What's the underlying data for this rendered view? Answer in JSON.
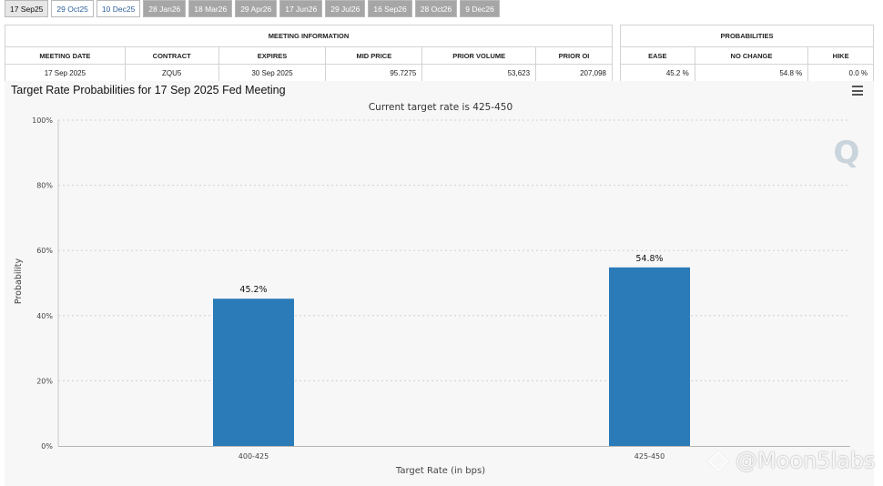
{
  "tabs": [
    {
      "label": "17 Sep25",
      "state": "active"
    },
    {
      "label": "29 Oct25",
      "state": "light"
    },
    {
      "label": "10 Dec25",
      "state": "light"
    },
    {
      "label": "28 Jan26",
      "state": "dark"
    },
    {
      "label": "18 Mar26",
      "state": "dark"
    },
    {
      "label": "29 Apr26",
      "state": "dark"
    },
    {
      "label": "17 Jun26",
      "state": "dark"
    },
    {
      "label": "29 Jul26",
      "state": "dark"
    },
    {
      "label": "16 Sep26",
      "state": "dark"
    },
    {
      "label": "28 Oct26",
      "state": "dark"
    },
    {
      "label": "9 Dec26",
      "state": "dark"
    }
  ],
  "meeting_info": {
    "title": "MEETING INFORMATION",
    "headers": [
      "MEETING DATE",
      "CONTRACT",
      "EXPIRES",
      "MID PRICE",
      "PRIOR VOLUME",
      "PRIOR OI"
    ],
    "row": [
      "17 Sep 2025",
      "ZQU5",
      "30 Sep 2025",
      "95.7275",
      "53,623",
      "207,098"
    ]
  },
  "probabilities": {
    "title": "PROBABILITIES",
    "headers": [
      "EASE",
      "NO CHANGE",
      "HIKE"
    ],
    "row": [
      "45.2 %",
      "54.8 %",
      "0.0 %"
    ]
  },
  "chart": {
    "title": "Target Rate Probabilities for 17 Sep 2025 Fed Meeting",
    "subtitle": "Current target rate is 425-450",
    "logo_text": "Q",
    "bar_color": "#2b7bb9"
  },
  "chart_data": {
    "type": "bar",
    "title": "Target Rate Probabilities for 17 Sep 2025 Fed Meeting",
    "subtitle": "Current target rate is 425-450",
    "xlabel": "Target Rate (in bps)",
    "ylabel": "Probability",
    "categories": [
      "400-425",
      "425-450"
    ],
    "values": [
      45.2,
      54.8
    ],
    "data_labels": [
      "45.2%",
      "54.8%"
    ],
    "y_ticks": [
      "0%",
      "20%",
      "40%",
      "60%",
      "80%",
      "100%"
    ],
    "ylim": [
      0,
      100
    ],
    "grid": true,
    "legend": "none"
  },
  "watermark": "@Moon5labs"
}
